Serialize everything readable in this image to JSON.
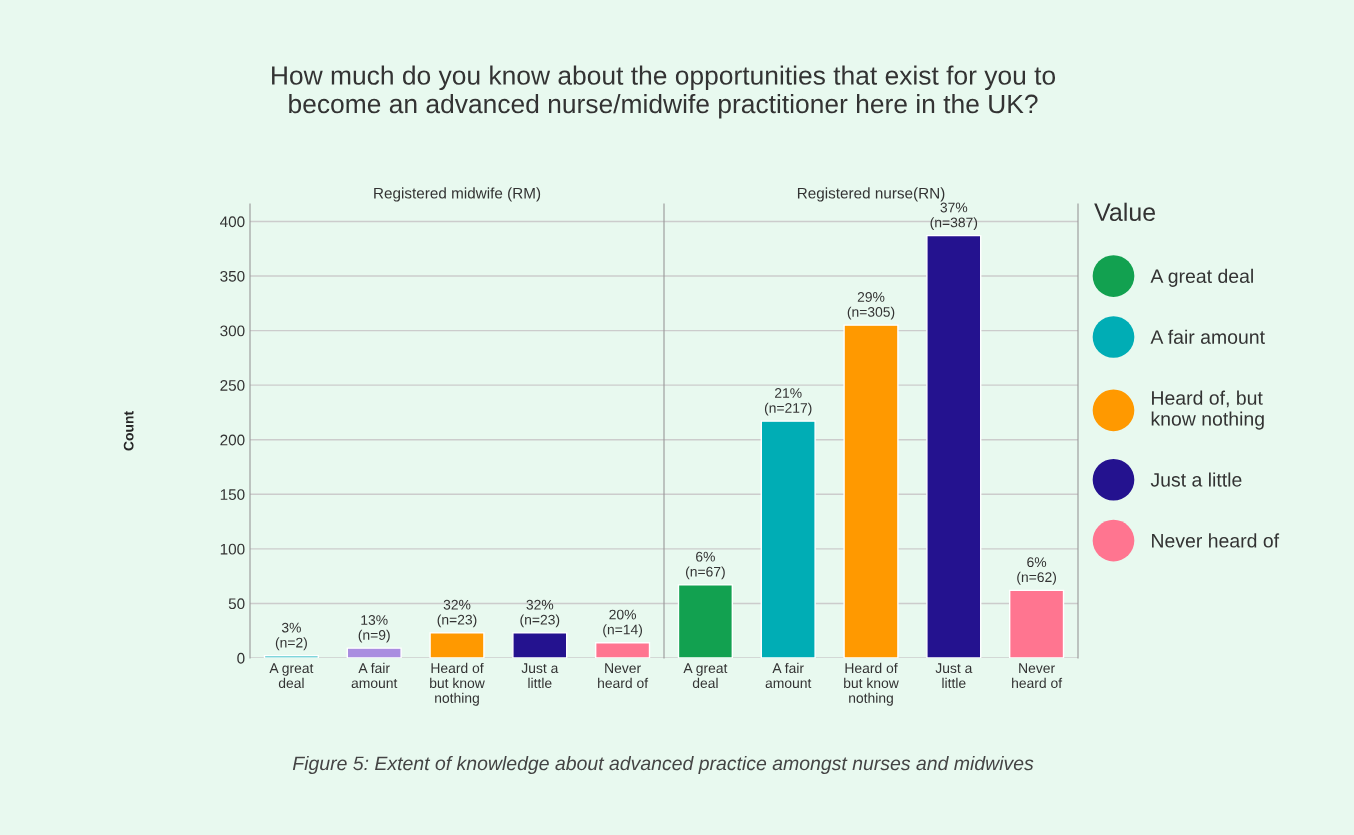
{
  "chart_data": [
    {
      "type": "bar",
      "title": "How much do you know about the opportunities that exist for you to\nbecome an advanced nurse/midwife practitioner here in the UK?",
      "subtitle": "Registered midwife (RM)",
      "ylabel": "Count",
      "categories": [
        "A great\ndeal",
        "A fair\namount",
        "Heard of\nbut know\nnothing",
        "Just a\nlittle",
        "Never\nheard of"
      ],
      "values": [
        2,
        9,
        23,
        23,
        14
      ],
      "colors": [
        "#00adb5",
        "#a98de0",
        "#ff9900",
        "#24128f",
        "#ff7590"
      ],
      "value_labels": [
        "3%\n(n=2)",
        "13%\n(n=9)",
        "32%\n(n=23)",
        "32%\n(n=23)",
        "20%\n(n=14)"
      ],
      "ylim": [
        0,
        416
      ],
      "yticks": [
        0,
        50,
        100,
        150,
        200,
        250,
        300,
        350,
        400
      ],
      "grid": "y",
      "annotations": [
        "Figure 5: Extent of knowledge about advanced practice amongst nurses and midwives"
      ]
    },
    {
      "type": "bar",
      "subtitle": "Registered nurse(RN)",
      "stacked": true,
      "legend": "right",
      "legend_title": "Value",
      "categories": [
        "A great\ndeal",
        "A fair\namount",
        "Heard of\nbut know\nnothing",
        "Just a\nlittle",
        "Never\nheard of"
      ],
      "series": [
        {
          "name": "A great deal",
          "color": "#12a150",
          "values": [
            67,
            null,
            null,
            null,
            null
          ],
          "value_labels": [
            "6%\n(n=67)",
            null,
            null,
            null,
            null
          ]
        },
        {
          "name": "A fair amount",
          "color": "#00adb5",
          "values": [
            null,
            217,
            null,
            null,
            null
          ],
          "value_labels": [
            null,
            "21%\n(n=217)",
            null,
            null,
            null
          ]
        },
        {
          "name": "Heard of, but\nknow nothing",
          "color": "#ff9900",
          "values": [
            null,
            null,
            305,
            null,
            null
          ],
          "value_labels": [
            null,
            null,
            "29%\n(n=305)",
            null,
            null
          ]
        },
        {
          "name": "Just a little",
          "color": "#24128f",
          "values": [
            null,
            null,
            null,
            387,
            null
          ],
          "value_labels": [
            null,
            null,
            null,
            "37%\n(n=387)",
            null
          ]
        },
        {
          "name": "Never heard of",
          "color": "#ff7590",
          "values": [
            null,
            null,
            null,
            null,
            62
          ],
          "value_labels": [
            null,
            null,
            null,
            null,
            "6%\n(n=62)"
          ]
        }
      ],
      "ylim": [
        0,
        416
      ],
      "yticks": [
        0,
        50,
        100,
        150,
        200,
        250,
        300,
        350,
        400
      ],
      "grid": "y",
      "tick_labels": "x"
    }
  ]
}
